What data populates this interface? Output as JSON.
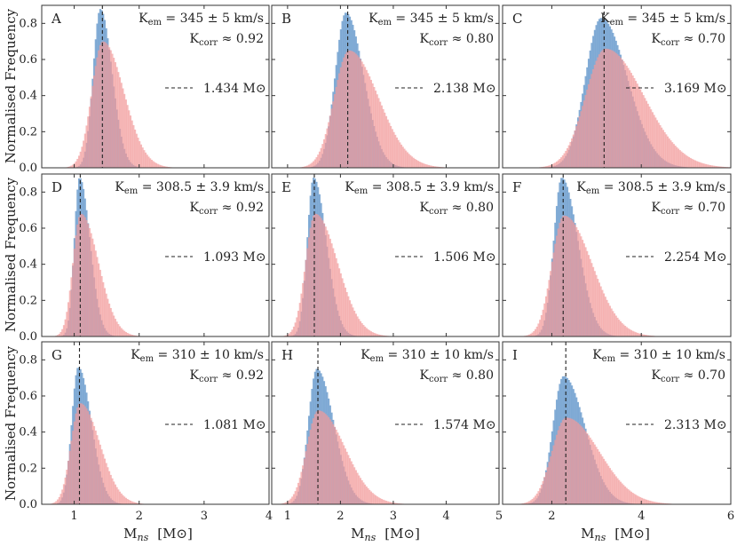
{
  "figure": {
    "ylabel": "Normalised Frequency",
    "xlabel": "M_ns [M⊙]",
    "xlabel_main": "M",
    "xlabel_sub": "ns",
    "xlabel_unit": "[M⊙]",
    "colors": {
      "blue": "#6f9fcf",
      "red": "#f29a9a",
      "overlap": "#c97f96"
    }
  },
  "chart_data": [
    {
      "type": "bar",
      "panel": "A",
      "kem": "345 ± 5 km/s",
      "kcorr": "≈ 0.92",
      "median": 1.434,
      "median_label": "1.434 M⊙",
      "xlim": [
        0.5,
        4
      ],
      "xticks": [
        1,
        2,
        3,
        4
      ],
      "ylim": [
        0,
        0.9
      ],
      "yticks": [
        0,
        0.2,
        0.4,
        0.6,
        0.8
      ],
      "series": [
        {
          "name": "blue",
          "peak": 0.88,
          "mode": 1.4,
          "sl": 0.11,
          "sr": 0.18
        },
        {
          "name": "red",
          "peak": 0.7,
          "mode": 1.44,
          "sl": 0.17,
          "sr": 0.32
        }
      ]
    },
    {
      "type": "bar",
      "panel": "B",
      "kem": "345 ± 5 km/s",
      "kcorr": "≈ 0.80",
      "median": 2.138,
      "median_label": "2.138 M⊙",
      "xlim": [
        0.7,
        5
      ],
      "xticks": [
        1,
        2,
        3,
        4,
        5
      ],
      "ylim": [
        0,
        0.9
      ],
      "yticks": [
        0,
        0.2,
        0.4,
        0.6,
        0.8
      ],
      "series": [
        {
          "name": "blue",
          "peak": 0.86,
          "mode": 2.1,
          "sl": 0.2,
          "sr": 0.33
        },
        {
          "name": "red",
          "peak": 0.65,
          "mode": 2.16,
          "sl": 0.28,
          "sr": 0.55
        }
      ]
    },
    {
      "type": "bar",
      "panel": "C",
      "kem": "345 ± 5 km/s",
      "kcorr": "≈ 0.70",
      "median": 3.169,
      "median_label": "3.169 M⊙",
      "xlim": [
        0.9,
        6
      ],
      "xticks": [
        2,
        4,
        6
      ],
      "ylim": [
        0,
        0.9
      ],
      "yticks": [
        0,
        0.2,
        0.4,
        0.6,
        0.8
      ],
      "series": [
        {
          "name": "blue",
          "peak": 0.83,
          "mode": 3.1,
          "sl": 0.35,
          "sr": 0.58
        },
        {
          "name": "red",
          "peak": 0.66,
          "mode": 3.2,
          "sl": 0.45,
          "sr": 0.85
        }
      ]
    },
    {
      "type": "bar",
      "panel": "D",
      "kem": "308.5 ± 3.9 km/s",
      "kcorr": "≈ 0.92",
      "median": 1.093,
      "median_label": "1.093 M⊙",
      "xlim": [
        0.5,
        4
      ],
      "xticks": [
        1,
        2,
        3,
        4
      ],
      "ylim": [
        0,
        0.9
      ],
      "yticks": [
        0,
        0.2,
        0.4,
        0.6,
        0.8
      ],
      "series": [
        {
          "name": "blue",
          "peak": 0.88,
          "mode": 1.08,
          "sl": 0.08,
          "sr": 0.16
        },
        {
          "name": "red",
          "peak": 0.68,
          "mode": 1.1,
          "sl": 0.12,
          "sr": 0.27
        }
      ]
    },
    {
      "type": "bar",
      "panel": "E",
      "kem": "308.5 ± 3.9 km/s",
      "kcorr": "≈ 0.80",
      "median": 1.506,
      "median_label": "1.506 M⊙",
      "xlim": [
        0.7,
        5
      ],
      "xticks": [
        1,
        2,
        3,
        4,
        5
      ],
      "ylim": [
        0,
        0.9
      ],
      "yticks": [
        0,
        0.2,
        0.4,
        0.6,
        0.8
      ],
      "series": [
        {
          "name": "blue",
          "peak": 0.88,
          "mode": 1.49,
          "sl": 0.12,
          "sr": 0.24
        },
        {
          "name": "red",
          "peak": 0.68,
          "mode": 1.52,
          "sl": 0.18,
          "sr": 0.42
        }
      ]
    },
    {
      "type": "bar",
      "panel": "F",
      "kem": "308.5 ± 3.9 km/s",
      "kcorr": "≈ 0.70",
      "median": 2.254,
      "median_label": "2.254 M⊙",
      "xlim": [
        0.9,
        6
      ],
      "xticks": [
        2,
        4,
        6
      ],
      "ylim": [
        0,
        0.9
      ],
      "yticks": [
        0,
        0.2,
        0.4,
        0.6,
        0.8
      ],
      "series": [
        {
          "name": "blue",
          "peak": 0.88,
          "mode": 2.22,
          "sl": 0.18,
          "sr": 0.36
        },
        {
          "name": "red",
          "peak": 0.67,
          "mode": 2.27,
          "sl": 0.27,
          "sr": 0.62
        }
      ]
    },
    {
      "type": "bar",
      "panel": "G",
      "kem": "310 ± 10 km/s",
      "kcorr": "≈ 0.92",
      "median": 1.081,
      "median_label": "1.081 M⊙",
      "xlim": [
        0.5,
        4
      ],
      "xticks": [
        1,
        2,
        3,
        4
      ],
      "ylim": [
        0,
        0.9
      ],
      "yticks": [
        0,
        0.2,
        0.4,
        0.6,
        0.8
      ],
      "series": [
        {
          "name": "blue",
          "peak": 0.76,
          "mode": 1.06,
          "sl": 0.1,
          "sr": 0.2
        },
        {
          "name": "red",
          "peak": 0.56,
          "mode": 1.09,
          "sl": 0.14,
          "sr": 0.3
        }
      ]
    },
    {
      "type": "bar",
      "panel": "H",
      "kem": "310 ± 10 km/s",
      "kcorr": "≈ 0.80",
      "median": 1.574,
      "median_label": "1.574 M⊙",
      "xlim": [
        0.7,
        5
      ],
      "xticks": [
        1,
        2,
        3,
        4,
        5
      ],
      "ylim": [
        0,
        0.9
      ],
      "yticks": [
        0,
        0.2,
        0.4,
        0.6,
        0.8
      ],
      "series": [
        {
          "name": "blue",
          "peak": 0.75,
          "mode": 1.55,
          "sl": 0.16,
          "sr": 0.32
        },
        {
          "name": "red",
          "peak": 0.52,
          "mode": 1.58,
          "sl": 0.22,
          "sr": 0.5
        }
      ]
    },
    {
      "type": "bar",
      "panel": "I",
      "kem": "310 ± 10 km/s",
      "kcorr": "≈ 0.70",
      "median": 2.313,
      "median_label": "2.313 M⊙",
      "xlim": [
        0.9,
        6
      ],
      "xticks": [
        2,
        4,
        6
      ],
      "ylim": [
        0,
        0.9
      ],
      "yticks": [
        0,
        0.2,
        0.4,
        0.6,
        0.8
      ],
      "series": [
        {
          "name": "blue",
          "peak": 0.71,
          "mode": 2.26,
          "sl": 0.24,
          "sr": 0.48
        },
        {
          "name": "red",
          "peak": 0.48,
          "mode": 2.32,
          "sl": 0.32,
          "sr": 0.74
        }
      ]
    }
  ]
}
